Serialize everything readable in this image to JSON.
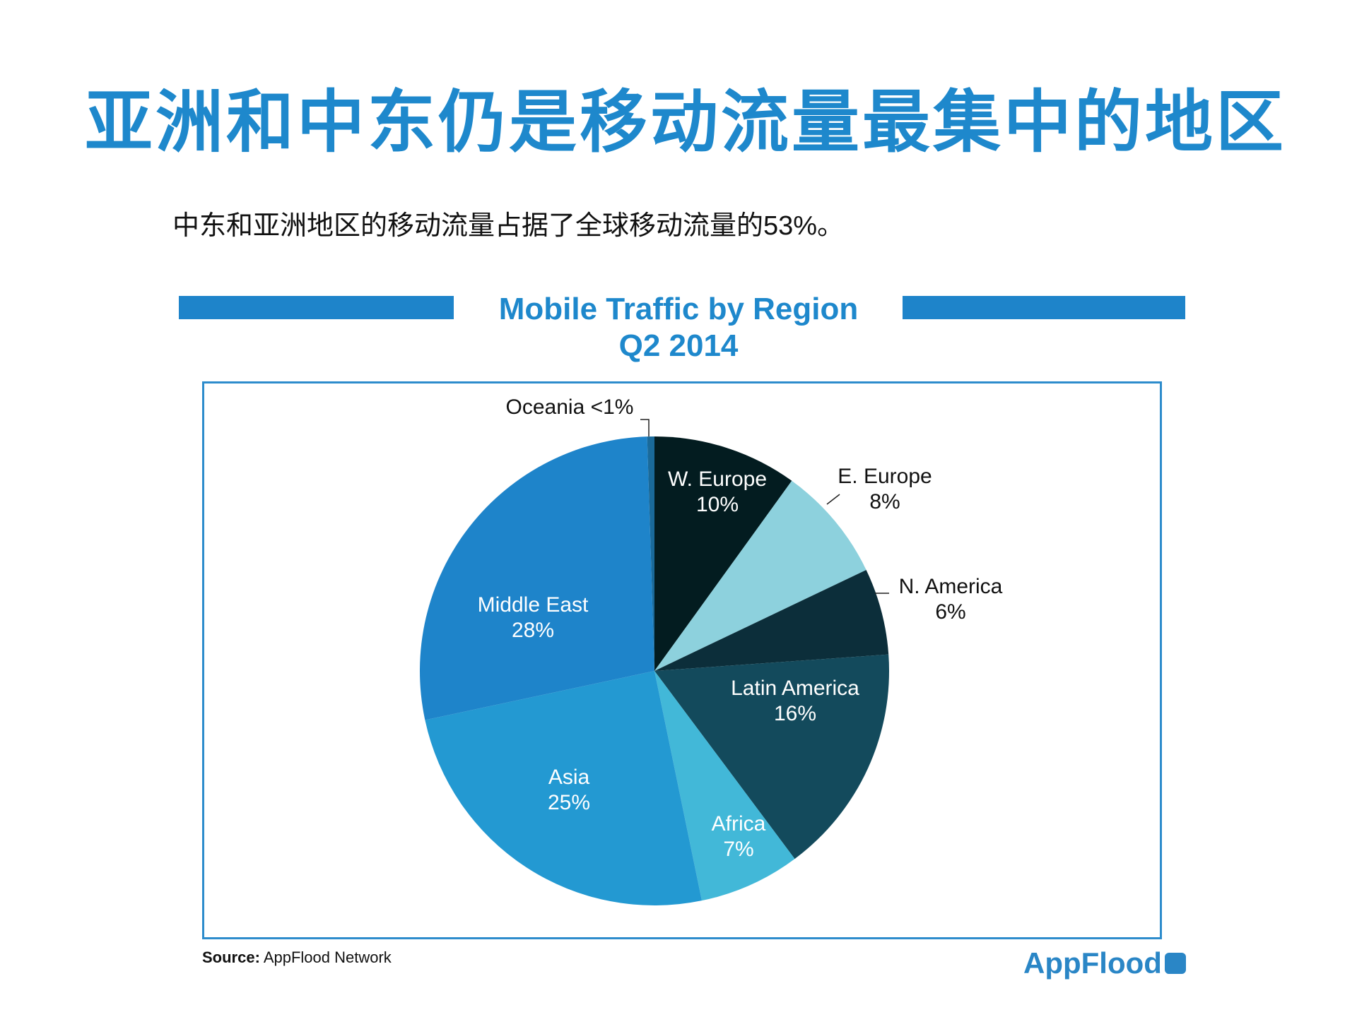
{
  "title": "亚洲和中东仍是移动流量最集中的地区",
  "subtitle": "中东和亚洲地区的移动流量占据了全球移动流量的53%。",
  "chart_data": {
    "type": "pie",
    "title": "Mobile Traffic by Region",
    "subtitle": "Q2 2014",
    "slices": [
      {
        "label": "W. Europe",
        "value": 10,
        "text": "10%",
        "color": "#031c20",
        "label_color": "#ffffff"
      },
      {
        "label": "E. Europe",
        "value": 8,
        "text": "8%",
        "color": "#8dd1dd",
        "label_color": "#111111"
      },
      {
        "label": "N. America",
        "value": 6,
        "text": "6%",
        "color": "#0c2e3a",
        "label_color": "#111111"
      },
      {
        "label": "Latin America",
        "value": 16,
        "text": "16%",
        "color": "#134a5c",
        "label_color": "#ffffff"
      },
      {
        "label": "Africa",
        "value": 7,
        "text": "7%",
        "color": "#42b8d8",
        "label_color": "#ffffff"
      },
      {
        "label": "Asia",
        "value": 25,
        "text": "25%",
        "color": "#2399d2",
        "label_color": "#ffffff"
      },
      {
        "label": "Middle East",
        "value": 28,
        "text": "28%",
        "color": "#1e84ca",
        "label_color": "#ffffff"
      },
      {
        "label": "Oceania",
        "value": 0.5,
        "text": "<1%",
        "color": "#1a6a9a",
        "label_color": "#111111"
      }
    ]
  },
  "source_label": "Source:",
  "source_text": "AppFlood Network",
  "logo": "AppFlood"
}
